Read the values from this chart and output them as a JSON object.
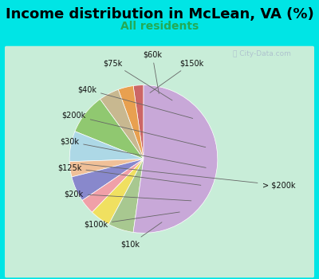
{
  "title": "Income distribution in McLean, VA (%)",
  "subtitle": "All residents",
  "subtitle_color": "#22aa55",
  "background_color": "#00e5e5",
  "chart_bg_color": "#c8edd8",
  "watermark": "City-Data.com",
  "labels": [
    "$150k",
    "$60k",
    "$75k",
    "$40k",
    "$200k",
    "$30k",
    "$125k",
    "$20k",
    "$100k",
    "$10k",
    "> $200k"
  ],
  "values": [
    2,
    3,
    4,
    8,
    6,
    3,
    5,
    3,
    4,
    5,
    47
  ],
  "colors": [
    "#cc6666",
    "#e8a050",
    "#c8b890",
    "#90c870",
    "#add8e6",
    "#f0c098",
    "#8888cc",
    "#f0a0a8",
    "#f0e060",
    "#a8c890",
    "#c8a8d8"
  ],
  "startangle": 90,
  "label_fontsize": 7,
  "title_fontsize": 13,
  "subtitle_fontsize": 10
}
